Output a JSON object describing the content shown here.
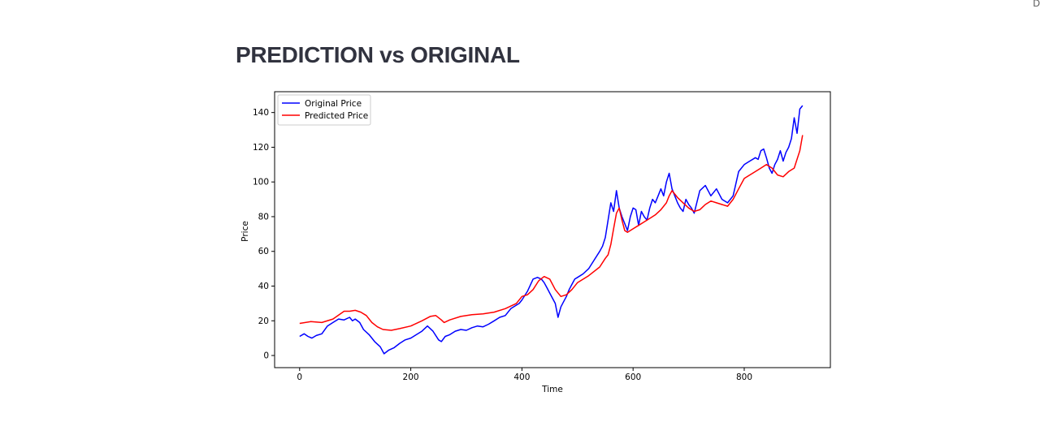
{
  "page": {
    "title": "PREDICTION vs ORIGINAL",
    "corner_glyph": "D"
  },
  "chart_data": {
    "type": "line",
    "title": "",
    "xlabel": "Time",
    "ylabel": "Price",
    "xlim": [
      -45,
      955
    ],
    "ylim": [
      -7,
      152
    ],
    "xticks": [
      0,
      200,
      400,
      600,
      800
    ],
    "yticks": [
      0,
      20,
      40,
      60,
      80,
      100,
      120,
      140
    ],
    "grid": false,
    "legend": "top-left",
    "series": [
      {
        "name": "Original Price",
        "color": "#0000ff",
        "x": [
          0,
          8,
          15,
          22,
          30,
          40,
          50,
          60,
          70,
          80,
          90,
          95,
          100,
          108,
          115,
          125,
          135,
          145,
          152,
          160,
          170,
          180,
          190,
          200,
          210,
          220,
          230,
          240,
          250,
          255,
          262,
          270,
          280,
          290,
          300,
          310,
          320,
          330,
          340,
          350,
          360,
          370,
          380,
          390,
          395,
          400,
          410,
          420,
          428,
          435,
          440,
          445,
          450,
          455,
          460,
          465,
          470,
          475,
          480,
          485,
          490,
          495,
          500,
          510,
          520,
          530,
          540,
          545,
          550,
          555,
          560,
          565,
          570,
          575,
          580,
          585,
          590,
          595,
          600,
          605,
          610,
          615,
          620,
          625,
          630,
          635,
          640,
          645,
          650,
          655,
          660,
          665,
          670,
          675,
          680,
          685,
          690,
          695,
          700,
          705,
          710,
          720,
          730,
          740,
          750,
          760,
          770,
          780,
          790,
          800,
          810,
          820,
          825,
          830,
          835,
          840,
          845,
          850,
          855,
          860,
          865,
          870,
          875,
          880,
          885,
          890,
          895,
          900,
          905
        ],
        "values": [
          11,
          12.5,
          11,
          10,
          11.5,
          12.5,
          17,
          19,
          21,
          20.5,
          22,
          20,
          21,
          19,
          15,
          12,
          8,
          5,
          1,
          3,
          4.5,
          7,
          9,
          10,
          12,
          14,
          17,
          14,
          9,
          8,
          11,
          12,
          14,
          15,
          14.5,
          16,
          17,
          16.5,
          18,
          20,
          22,
          23,
          27,
          29,
          30,
          32,
          37,
          44,
          45,
          44,
          42,
          39,
          36,
          33,
          30,
          22,
          28,
          31,
          34,
          38,
          41,
          44,
          45,
          47,
          50,
          55,
          60,
          63,
          68,
          78,
          88,
          83,
          95,
          85,
          80,
          76,
          72,
          80,
          85,
          84,
          75,
          83,
          80,
          78,
          85,
          90,
          88,
          92,
          96,
          92,
          100,
          105,
          96,
          92,
          88,
          85,
          83,
          90,
          87,
          85,
          82,
          95,
          98,
          92,
          96,
          90,
          88,
          92,
          106,
          110,
          112,
          114,
          113,
          118,
          119,
          114,
          108,
          105,
          110,
          113,
          118,
          112,
          117,
          120,
          125,
          137,
          128,
          142,
          144
        ]
      },
      {
        "name": "Predicted Price",
        "color": "#ff0000",
        "x": [
          0,
          20,
          40,
          60,
          80,
          90,
          100,
          110,
          120,
          130,
          140,
          150,
          165,
          180,
          200,
          220,
          235,
          245,
          255,
          260,
          270,
          290,
          310,
          330,
          350,
          370,
          390,
          400,
          410,
          420,
          430,
          440,
          450,
          460,
          470,
          480,
          490,
          500,
          520,
          540,
          550,
          555,
          560,
          565,
          570,
          575,
          580,
          585,
          590,
          600,
          610,
          620,
          630,
          640,
          650,
          660,
          665,
          670,
          680,
          690,
          700,
          710,
          720,
          730,
          740,
          750,
          760,
          770,
          780,
          790,
          800,
          810,
          820,
          830,
          840,
          850,
          860,
          870,
          880,
          890,
          900,
          905
        ],
        "values": [
          18.5,
          19.5,
          19,
          21,
          25.5,
          25.5,
          26,
          25,
          23,
          19,
          16.5,
          15,
          14.5,
          15.5,
          17,
          20,
          22.5,
          23,
          20.5,
          19,
          20.5,
          22.5,
          23.5,
          24,
          25,
          27,
          30,
          34,
          35,
          38,
          43,
          45.5,
          44,
          38,
          34,
          35,
          38,
          42,
          46,
          51,
          56,
          58,
          64,
          73,
          82,
          85,
          78,
          72,
          71,
          73,
          75,
          77,
          79,
          81,
          84,
          88,
          92,
          95,
          91,
          88,
          85,
          83,
          84,
          87,
          89,
          88,
          87,
          86,
          90,
          96,
          102,
          104,
          106,
          108,
          110,
          108,
          104,
          103,
          106,
          108,
          118,
          127
        ]
      }
    ]
  }
}
